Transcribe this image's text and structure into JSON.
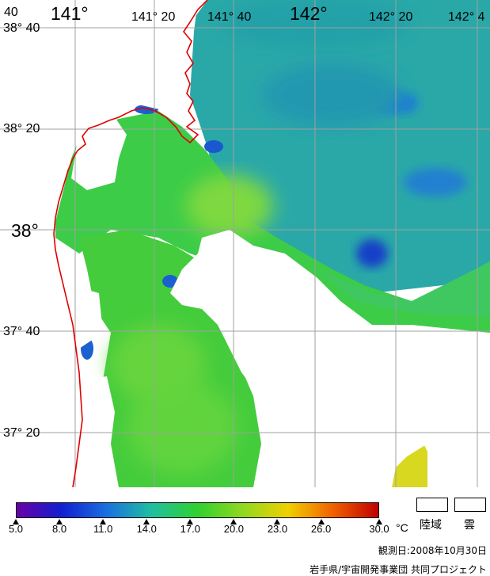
{
  "map": {
    "longitude_labels": [
      "40",
      "141°",
      "141° 20",
      "141° 40",
      "142°",
      "142° 20",
      "142° 4"
    ],
    "latitude_labels": [
      "38° 40",
      "38° 20",
      "38°",
      "37° 40",
      "37° 20"
    ],
    "colors": {
      "land": "#ffffff",
      "cloud": "#ffffff",
      "coastline": "#e00000",
      "grid": "#a0a0a0"
    }
  },
  "colorbar": {
    "ticks": [
      "5.0",
      "8.0",
      "11.0",
      "14.0",
      "17.0",
      "20.0",
      "23.0",
      "26.0",
      "30.0"
    ],
    "unit": "°C",
    "range": [
      5.0,
      30.0
    ],
    "stops": [
      "#6a00a8",
      "#1020d0",
      "#1a70e0",
      "#20c0a0",
      "#30d030",
      "#90d820",
      "#f0d000",
      "#f06000",
      "#c00000"
    ]
  },
  "legend": {
    "land_label": "陸域",
    "cloud_label": "雲"
  },
  "footer": {
    "observation_date": "観測日:2008年10月30日",
    "credit": "岩手県/宇宙開発事業団 共同プロジェクト"
  }
}
